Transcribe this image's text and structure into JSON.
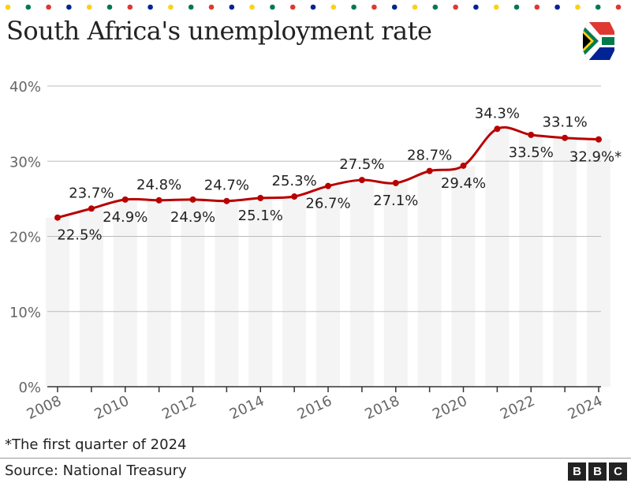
{
  "title": "South Africa's unemployment rate",
  "footnote": "*The first quarter of 2024",
  "source": "Source: National Treasury",
  "logo": [
    "B",
    "B",
    "C"
  ],
  "colors": {
    "line": "#b80000",
    "grid": "#bbbbbb",
    "stripe": "#f4f4f4",
    "text": "#222222",
    "axis_text": "#666666",
    "dots": [
      "#fcd116",
      "#007a4d",
      "#de3831",
      "#002395"
    ]
  },
  "chart_data": {
    "type": "line",
    "title": "South Africa's unemployment rate",
    "xlabel": "",
    "ylabel": "",
    "ylim": [
      0,
      40
    ],
    "yticks": [
      "0%",
      "10%",
      "20%",
      "30%",
      "40%"
    ],
    "ytick_values": [
      0,
      10,
      20,
      30,
      40
    ],
    "xticks": [
      "2008",
      "2010",
      "2012",
      "2014",
      "2016",
      "2018",
      "2020",
      "2022",
      "2024"
    ],
    "x": [
      2008,
      2009,
      2010,
      2011,
      2012,
      2013,
      2014,
      2015,
      2016,
      2017,
      2018,
      2019,
      2020,
      2021,
      2022,
      2023,
      2024
    ],
    "values": [
      22.5,
      23.7,
      24.9,
      24.8,
      24.9,
      24.7,
      25.1,
      25.3,
      26.7,
      27.5,
      27.1,
      28.7,
      29.4,
      34.3,
      33.5,
      33.1,
      32.9
    ],
    "labels": [
      "22.5%",
      "23.7%",
      "24.9%",
      "24.8%",
      "24.9%",
      "24.7%",
      "25.1%",
      "25.3%",
      "26.7%",
      "27.5%",
      "27.1%",
      "28.7%",
      "29.4%",
      "34.3%",
      "33.5%",
      "33.1%",
      "32.9%*"
    ],
    "label_pos": [
      "below",
      "above",
      "below",
      "above",
      "below",
      "above",
      "below",
      "above",
      "below",
      "above",
      "below",
      "above",
      "below",
      "above",
      "below",
      "above",
      "below"
    ],
    "grid": true,
    "legend": "none"
  }
}
